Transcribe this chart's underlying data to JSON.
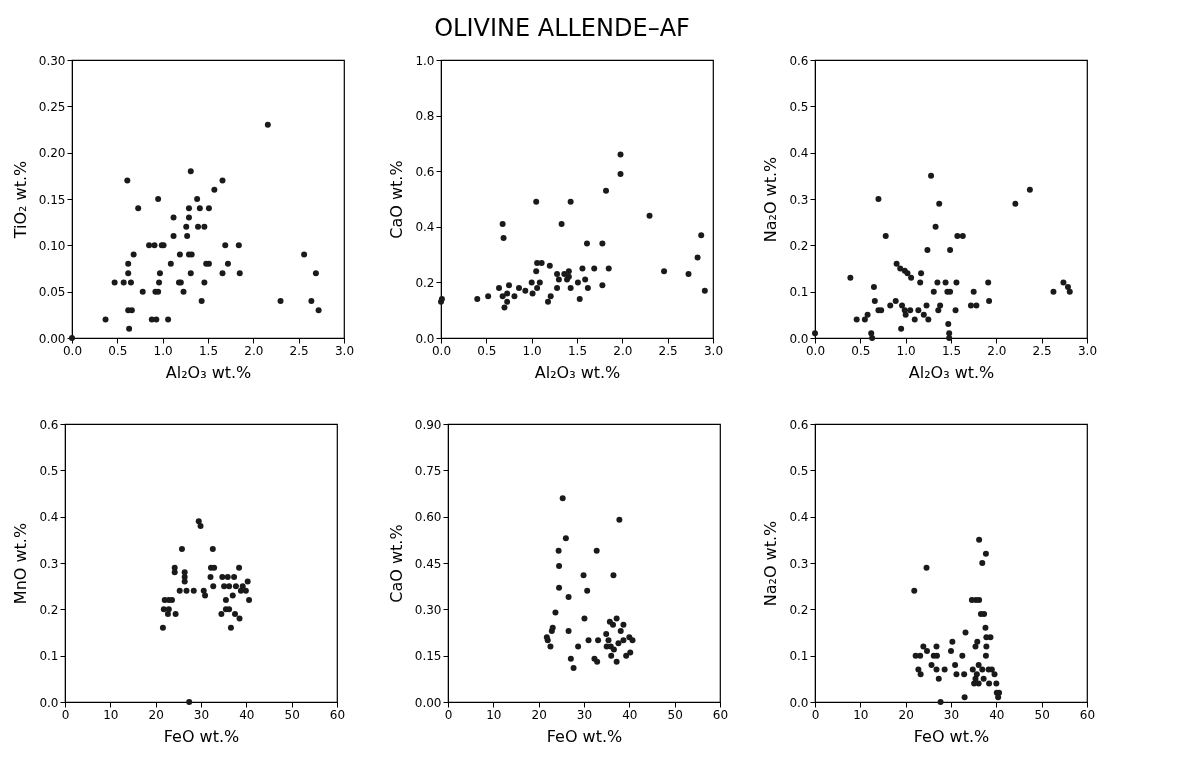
{
  "chart_data": [
    {
      "type": "scatter",
      "xlabel": "Al₂O₃ wt.%",
      "ylabel": "TiO₂ wt.%",
      "marker": "circle",
      "xlim": [
        0,
        3
      ],
      "xticks": [
        {
          "value": 0,
          "label": "0.0"
        },
        0.5,
        {
          "value": 1,
          "label": "1.0"
        },
        1.5,
        {
          "value": 2,
          "label": "2.0"
        },
        2.5,
        {
          "value": 3,
          "label": "3.0"
        }
      ],
      "ylim": [
        0,
        0.3
      ],
      "yticks": [
        {
          "value": 0,
          "label": "0.00"
        },
        0.05,
        {
          "value": 0.1,
          "label": "0.10"
        },
        0.15,
        {
          "value": 0.2,
          "label": "0.20"
        },
        0.25,
        {
          "value": 0.3,
          "label": "0.30"
        }
      ],
      "series": [
        {
          "color": "#1a1a1a",
          "x": [
            2.16,
            1.31,
            0.61,
            1.66,
            1.57,
            0.95,
            1.38,
            0.73,
            1.29,
            1.41,
            1.51,
            1.12,
            1.29,
            1.26,
            1.39,
            1.46,
            1.12,
            1.27,
            0.85,
            0.91,
            0.99,
            1.01,
            1.69,
            1.84,
            2.56,
            0.68,
            1.19,
            1.29,
            1.32,
            0.62,
            1.09,
            1.48,
            1.51,
            1.72,
            0.62,
            0.97,
            1.31,
            1.66,
            1.85,
            2.69,
            0.47,
            0.57,
            0.65,
            0.96,
            1.18,
            1.2,
            1.46,
            0.78,
            0.92,
            0.95,
            1.23,
            1.43,
            2.3,
            2.64,
            0.62,
            0.66,
            2.72,
            0.37,
            0.88,
            0.93,
            1.06,
            0.63,
            0
          ],
          "values": [
            0.23,
            0.18,
            0.17,
            0.17,
            0.16,
            0.15,
            0.15,
            0.14,
            0.14,
            0.14,
            0.14,
            0.13,
            0.13,
            0.12,
            0.12,
            0.12,
            0.11,
            0.11,
            0.1,
            0.1,
            0.1,
            0.1,
            0.1,
            0.1,
            0.09,
            0.09,
            0.09,
            0.09,
            0.09,
            0.08,
            0.08,
            0.08,
            0.08,
            0.08,
            0.07,
            0.07,
            0.07,
            0.07,
            0.07,
            0.07,
            0.06,
            0.06,
            0.06,
            0.06,
            0.06,
            0.06,
            0.06,
            0.05,
            0.05,
            0.05,
            0.05,
            0.04,
            0.04,
            0.04,
            0.03,
            0.03,
            0.03,
            0.02,
            0.02,
            0.02,
            0.02,
            0.01,
            0
          ]
        }
      ]
    },
    {
      "type": "scatter",
      "title": "OLIVINE ALLENDE–AF",
      "xlabel": "Al₂O₃ wt.%",
      "ylabel": "CaO wt.%",
      "marker": "circle",
      "xlim": [
        0,
        3
      ],
      "xticks": [
        {
          "value": 0,
          "label": "0.0"
        },
        0.5,
        {
          "value": 1,
          "label": "1.0"
        },
        1.5,
        {
          "value": 2,
          "label": "2.0"
        },
        2.5,
        {
          "value": 3,
          "label": "3.0"
        }
      ],
      "ylim": [
        0,
        1
      ],
      "yticks": [
        {
          "value": 0,
          "label": "0.0"
        },
        0.2,
        0.4,
        0.6,
        0.8,
        {
          "value": 1,
          "label": "1.0"
        }
      ],
      "series": [
        {
          "color": "#1a1a1a",
          "x": [
            0,
            0.01,
            1.98,
            1.98,
            1.82,
            2.3,
            1.05,
            1.43,
            0.68,
            1.33,
            0.69,
            2.87,
            1.61,
            1.78,
            2.83,
            1.06,
            1.11,
            1.2,
            1.56,
            1.69,
            1.85,
            1.05,
            2.46,
            1.28,
            1.36,
            1.41,
            2.73,
            0.64,
            0.75,
            0.68,
            0.73,
            0.7,
            0.73,
            0.81,
            0.86,
            0.93,
            1.01,
            1,
            1.06,
            1.09,
            1.18,
            1.21,
            1.28,
            1.3,
            1.39,
            1.43,
            1.51,
            1.53,
            1.59,
            1.62,
            1.78,
            2.91,
            0.4,
            0.52,
            1.41
          ],
          "values": [
            0.13,
            0.14,
            0.66,
            0.59,
            0.53,
            0.44,
            0.49,
            0.49,
            0.41,
            0.41,
            0.36,
            0.37,
            0.34,
            0.34,
            0.29,
            0.27,
            0.27,
            0.26,
            0.25,
            0.25,
            0.25,
            0.24,
            0.24,
            0.23,
            0.23,
            0.24,
            0.23,
            0.18,
            0.19,
            0.15,
            0.16,
            0.11,
            0.13,
            0.15,
            0.18,
            0.17,
            0.16,
            0.2,
            0.18,
            0.2,
            0.13,
            0.15,
            0.18,
            0.21,
            0.21,
            0.18,
            0.2,
            0.14,
            0.21,
            0.18,
            0.19,
            0.17,
            0.14,
            0.15,
            0.22
          ]
        }
      ]
    },
    {
      "type": "scatter",
      "xlabel": "Al₂O₃ wt.%",
      "ylabel": "Na₂O wt.%",
      "marker": "circle",
      "xlim": [
        0,
        3
      ],
      "xticks": [
        {
          "value": 0,
          "label": "0.0"
        },
        0.5,
        {
          "value": 1,
          "label": "1.0"
        },
        1.5,
        {
          "value": 2,
          "label": "2.0"
        },
        2.5,
        {
          "value": 3,
          "label": "3.0"
        }
      ],
      "ylim": [
        0,
        0.6
      ],
      "yticks": [
        {
          "value": 0,
          "label": "0.0"
        },
        0.1,
        0.2,
        0.3,
        0.4,
        0.5,
        0.6
      ],
      "series": [
        {
          "color": "#1a1a1a",
          "x": [
            1.28,
            2.37,
            0.7,
            1.37,
            2.21,
            1.33,
            0.78,
            1.57,
            1.63,
            1.24,
            1.49,
            0.9,
            0.94,
            0.99,
            1.02,
            1.06,
            1.17,
            0.39,
            1.16,
            1.35,
            1.44,
            1.56,
            1.91,
            2.74,
            2.79,
            2.81,
            2.63,
            1.31,
            1.46,
            1.49,
            1.75,
            0.65,
            0.66,
            0.89,
            1.92,
            0.83,
            0.96,
            1.23,
            1.38,
            1.72,
            1.78,
            0.7,
            0.73,
            0.99,
            1.05,
            1.14,
            1.36,
            1.55,
            0,
            0.46,
            0.55,
            0.58,
            0.62,
            0.63,
            0.95,
            1.2,
            1.25,
            1.47,
            1.48,
            1.48,
            1,
            1.1
          ],
          "values": [
            0.35,
            0.32,
            0.3,
            0.29,
            0.29,
            0.24,
            0.22,
            0.22,
            0.22,
            0.19,
            0.19,
            0.16,
            0.15,
            0.145,
            0.14,
            0.13,
            0.14,
            0.13,
            0.12,
            0.12,
            0.12,
            0.12,
            0.12,
            0.12,
            0.11,
            0.1,
            0.1,
            0.1,
            0.1,
            0.1,
            0.1,
            0.11,
            0.08,
            0.08,
            0.08,
            0.07,
            0.07,
            0.07,
            0.07,
            0.07,
            0.07,
            0.06,
            0.06,
            0.06,
            0.06,
            0.06,
            0.06,
            0.06,
            0.01,
            0.04,
            0.04,
            0.05,
            0.01,
            0,
            0.02,
            0.05,
            0.04,
            0.03,
            0.01,
            0,
            0.05,
            0.04
          ]
        }
      ]
    },
    {
      "type": "scatter",
      "xlabel": "FeO wt.%",
      "ylabel": "MnO wt.%",
      "marker": "circle",
      "xlim": [
        0,
        60
      ],
      "xticks": [
        0,
        10,
        20,
        30,
        40,
        50,
        60
      ],
      "ylim": [
        0,
        0.6
      ],
      "yticks": [
        {
          "value": 0,
          "label": "0.0"
        },
        0.1,
        0.2,
        0.3,
        0.4,
        0.5,
        0.6
      ],
      "series": [
        {
          "color": "#1a1a1a",
          "x": [
            29.5,
            29.9,
            25.8,
            32.6,
            24.2,
            24.2,
            32.2,
            32.9,
            38.4,
            26.4,
            26.4,
            26.4,
            32.1,
            34.7,
            35.9,
            37.3,
            40.3,
            25.3,
            26.8,
            28.4,
            30.6,
            30.9,
            32.7,
            35.1,
            36.2,
            37.7,
            39.2,
            37,
            38.8,
            39.9,
            22,
            22.9,
            23.6,
            35.5,
            40.6,
            21.8,
            22.9,
            22.7,
            24.4,
            34.5,
            35.5,
            36.2,
            37.5,
            38.5,
            21.6,
            36.6,
            27.4
          ],
          "values": [
            0.39,
            0.38,
            0.33,
            0.33,
            0.29,
            0.28,
            0.29,
            0.29,
            0.29,
            0.28,
            0.27,
            0.26,
            0.27,
            0.27,
            0.27,
            0.27,
            0.26,
            0.24,
            0.24,
            0.24,
            0.24,
            0.23,
            0.25,
            0.25,
            0.25,
            0.25,
            0.25,
            0.23,
            0.24,
            0.24,
            0.22,
            0.22,
            0.22,
            0.22,
            0.22,
            0.2,
            0.2,
            0.19,
            0.19,
            0.19,
            0.2,
            0.2,
            0.19,
            0.18,
            0.16,
            0.16,
            0
          ]
        }
      ]
    },
    {
      "type": "scatter",
      "xlabel": "FeO wt.%",
      "ylabel": "CaO wt.%",
      "marker": "circle",
      "xlim": [
        0,
        60
      ],
      "xticks": [
        0,
        10,
        20,
        30,
        40,
        50,
        60
      ],
      "ylim": [
        0,
        0.9
      ],
      "yticks": [
        {
          "value": 0,
          "label": "0.00"
        },
        0.15,
        {
          "value": 0.3,
          "label": "0.30"
        },
        0.45,
        {
          "value": 0.6,
          "label": "0.60"
        },
        0.75,
        {
          "value": 0.9,
          "label": "0.90"
        }
      ],
      "series": [
        {
          "color": "#1a1a1a",
          "x": [
            25.3,
            37.8,
            26,
            24.4,
            32.8,
            24.5,
            29.9,
            36.5,
            24.5,
            30.7,
            26.6,
            23.7,
            30.1,
            37.2,
            23.1,
            22.9,
            26.6,
            35.7,
            36.4,
            38.7,
            38.1,
            21.8,
            22,
            22.6,
            28.7,
            31,
            33.1,
            34.9,
            35.4,
            35,
            35.9,
            37.6,
            38.7,
            40,
            40.7,
            36.6,
            36,
            37.2,
            39.3,
            40.2,
            27.1,
            27.7,
            32.3,
            32.9
          ],
          "values": [
            0.66,
            0.59,
            0.53,
            0.49,
            0.49,
            0.44,
            0.41,
            0.41,
            0.37,
            0.36,
            0.34,
            0.29,
            0.27,
            0.27,
            0.24,
            0.23,
            0.23,
            0.26,
            0.25,
            0.25,
            0.23,
            0.21,
            0.2,
            0.18,
            0.18,
            0.2,
            0.2,
            0.22,
            0.2,
            0.18,
            0.18,
            0.19,
            0.2,
            0.21,
            0.2,
            0.17,
            0.15,
            0.13,
            0.15,
            0.16,
            0.14,
            0.11,
            0.14,
            0.13
          ]
        }
      ]
    },
    {
      "type": "scatter",
      "xlabel": "FeO wt.%",
      "ylabel": "Na₂O wt.%",
      "marker": "circle",
      "xlim": [
        0,
        60
      ],
      "xticks": [
        0,
        10,
        20,
        30,
        40,
        50,
        60
      ],
      "ylim": [
        0,
        0.6
      ],
      "yticks": [
        {
          "value": 0,
          "label": "0.0"
        },
        0.1,
        0.2,
        0.3,
        0.4,
        0.5,
        0.6
      ],
      "series": [
        {
          "color": "#1a1a1a",
          "x": [
            36.2,
            37.7,
            36.9,
            24.6,
            21.9,
            34.6,
            35.5,
            36.2,
            36.6,
            37.3,
            37.6,
            33.2,
            37.8,
            38.7,
            30.3,
            35.8,
            35.4,
            23.9,
            24.7,
            26.8,
            37.8,
            22.2,
            23.2,
            26.2,
            26.9,
            30,
            32.5,
            37.7,
            25.7,
            30.9,
            36.1,
            22.8,
            23.3,
            26.8,
            28.6,
            31.2,
            32.9,
            34.8,
            35.7,
            35.4,
            36.9,
            37.2,
            38.3,
            39,
            35.1,
            36.1,
            38.4,
            39.6,
            40,
            27.3,
            40.1,
            40.6,
            40.4,
            33,
            27.7
          ],
          "values": [
            0.35,
            0.32,
            0.3,
            0.29,
            0.24,
            0.22,
            0.22,
            0.22,
            0.19,
            0.19,
            0.16,
            0.15,
            0.14,
            0.14,
            0.13,
            0.13,
            0.12,
            0.12,
            0.11,
            0.12,
            0.12,
            0.1,
            0.1,
            0.1,
            0.1,
            0.11,
            0.1,
            0.1,
            0.08,
            0.08,
            0.08,
            0.07,
            0.06,
            0.07,
            0.07,
            0.06,
            0.06,
            0.07,
            0.06,
            0.05,
            0.07,
            0.05,
            0.07,
            0.07,
            0.04,
            0.04,
            0.04,
            0.06,
            0.04,
            0.05,
            0.02,
            0.02,
            0.01,
            0.01,
            0
          ]
        }
      ]
    }
  ]
}
